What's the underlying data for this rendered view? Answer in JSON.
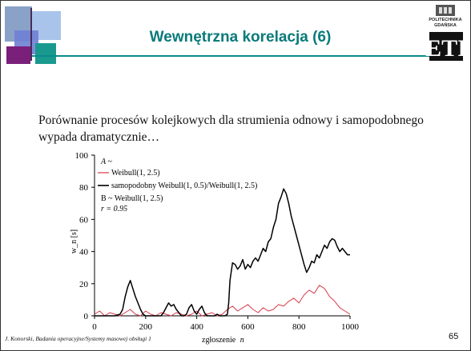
{
  "slide": {
    "title": "Wewnętrzna korelacja (6)",
    "intro": "Porównanie procesów kolejkowych dla strumienia odnowy i samopodobnego wypada dramatycznie…",
    "footer": "J. Konorski, Badania operacyjne/Systemy masowej obsługi 1",
    "page_number": "65",
    "logo_text_top": "POLITECHNIKA",
    "logo_text_bottom": "GDAŃSKA",
    "logo_letters": "ETI"
  },
  "colors": {
    "title": "#0a7a7a",
    "rule": "#0a8a8a",
    "series_weibull": "#d93a4a",
    "series_selfsimilar": "#000000"
  },
  "chart_data": {
    "type": "line",
    "xlabel_text": "zgłoszenie",
    "xlabel_var": "n",
    "ylabel": "w_n [s]",
    "xlim": [
      0,
      1000
    ],
    "ylim": [
      0,
      100
    ],
    "xticks": [
      0,
      200,
      400,
      600,
      800,
      1000
    ],
    "yticks": [
      0,
      20,
      40,
      60,
      80,
      100
    ],
    "grid": false,
    "annotation_a": "A ~",
    "annotation_b_prefix": "B ~ Weibull(1, 2.5)",
    "annotation_r": "r = 0.95",
    "series": [
      {
        "name": "Weibull(1, 2.5)",
        "x": [
          0,
          20,
          40,
          60,
          80,
          100,
          120,
          140,
          160,
          180,
          200,
          220,
          240,
          260,
          280,
          300,
          320,
          340,
          360,
          380,
          400,
          420,
          440,
          460,
          480,
          500,
          520,
          540,
          560,
          580,
          600,
          620,
          640,
          660,
          680,
          700,
          720,
          740,
          760,
          780,
          800,
          820,
          840,
          860,
          880,
          900,
          920,
          940,
          960,
          980,
          1000
        ],
        "y": [
          1,
          3,
          0,
          2,
          1,
          0,
          2,
          4,
          1,
          0,
          3,
          1,
          0,
          2,
          1,
          0,
          2,
          1,
          0,
          1,
          3,
          0,
          1,
          2,
          0,
          1,
          4,
          6,
          3,
          5,
          7,
          4,
          2,
          5,
          3,
          4,
          7,
          6,
          9,
          11,
          8,
          13,
          16,
          14,
          19,
          17,
          12,
          9,
          5,
          3,
          1
        ]
      },
      {
        "name": "samopodobny Weibull(1, 0.5)/Weibull(1, 2.5)",
        "x": [
          0,
          20,
          40,
          60,
          80,
          100,
          110,
          120,
          130,
          140,
          150,
          160,
          170,
          180,
          190,
          200,
          210,
          220,
          240,
          260,
          270,
          280,
          290,
          300,
          310,
          320,
          330,
          340,
          350,
          360,
          370,
          380,
          390,
          400,
          410,
          420,
          430,
          440,
          450,
          460,
          470,
          480,
          490,
          500,
          510,
          520,
          525,
          530,
          540,
          550,
          560,
          570,
          580,
          590,
          600,
          610,
          620,
          630,
          640,
          650,
          660,
          670,
          680,
          690,
          700,
          710,
          720,
          730,
          740,
          750,
          760,
          770,
          780,
          790,
          800,
          810,
          820,
          830,
          840,
          850,
          860,
          870,
          880,
          890,
          900,
          910,
          920,
          930,
          940,
          950,
          960,
          970,
          980,
          990,
          1000
        ],
        "y": [
          0,
          0,
          0,
          0,
          0,
          1,
          4,
          12,
          18,
          22,
          17,
          12,
          8,
          4,
          1,
          0,
          0,
          0,
          0,
          0,
          2,
          5,
          8,
          6,
          7,
          4,
          2,
          0,
          0,
          1,
          5,
          7,
          3,
          1,
          4,
          6,
          2,
          0,
          0,
          0,
          0,
          1,
          0,
          0,
          0,
          1,
          8,
          22,
          33,
          32,
          29,
          31,
          35,
          29,
          32,
          30,
          34,
          36,
          34,
          38,
          42,
          40,
          46,
          48,
          55,
          60,
          70,
          74,
          79,
          76,
          70,
          62,
          56,
          50,
          44,
          38,
          32,
          27,
          30,
          34,
          33,
          38,
          36,
          40,
          44,
          42,
          46,
          48,
          47,
          43,
          40,
          42,
          40,
          38,
          38
        ]
      }
    ]
  }
}
